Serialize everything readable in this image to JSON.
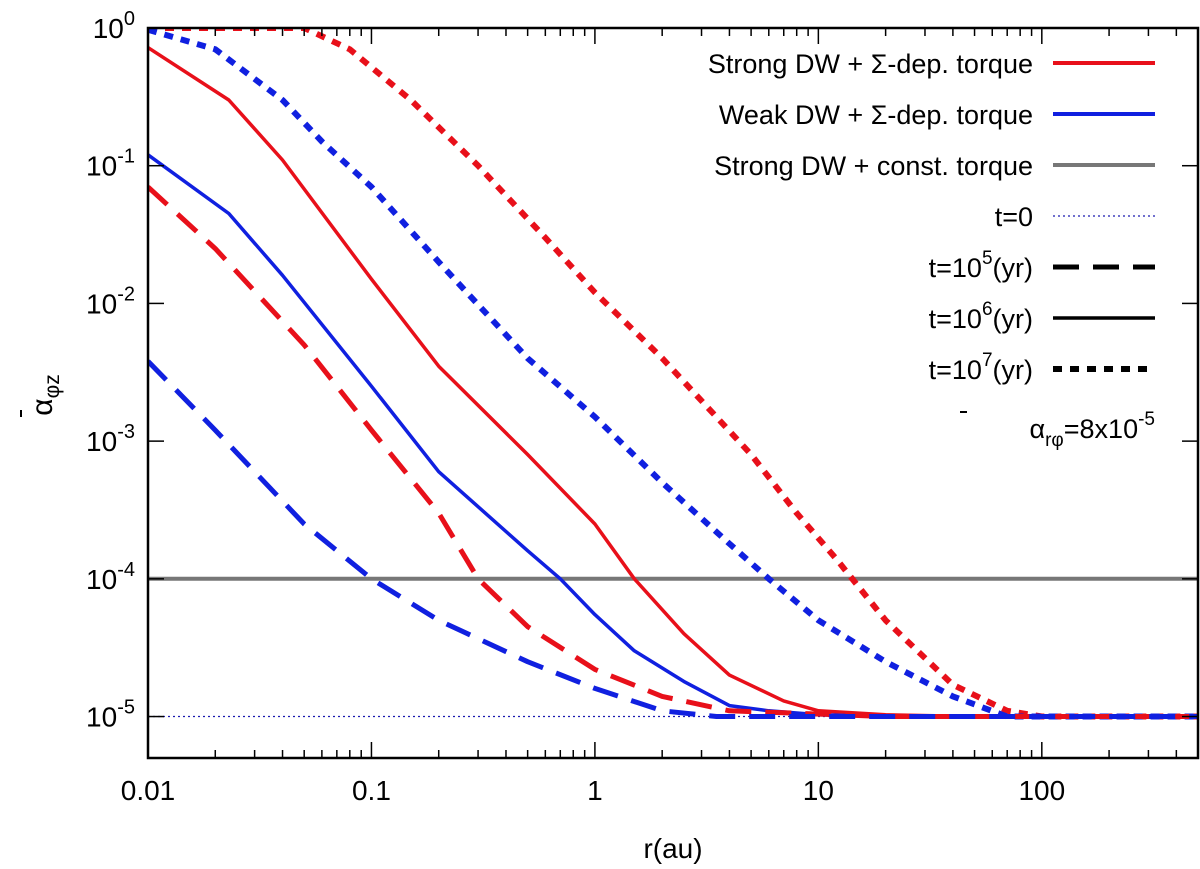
{
  "chart_data": {
    "type": "line",
    "xscale": "log",
    "yscale": "log",
    "xlim": [
      0.01,
      500
    ],
    "ylim": [
      5e-06,
      1
    ],
    "xlabel": "r(au)",
    "ylabel": "ᾱ_φz",
    "grid": false,
    "legend_position": "top-right",
    "x_ticks": [
      {
        "value": 0.01,
        "label": "0.01"
      },
      {
        "value": 0.1,
        "label": "0.1"
      },
      {
        "value": 1,
        "label": "1"
      },
      {
        "value": 10,
        "label": "10"
      },
      {
        "value": 100,
        "label": "100"
      }
    ],
    "y_ticks": [
      {
        "value": 1,
        "base": "10",
        "exp": "0"
      },
      {
        "value": 0.1,
        "base": "10",
        "exp": "-1"
      },
      {
        "value": 0.01,
        "base": "10",
        "exp": "-2"
      },
      {
        "value": 0.001,
        "base": "10",
        "exp": "-3"
      },
      {
        "value": 0.0001,
        "base": "10",
        "exp": "-4"
      },
      {
        "value": 1e-05,
        "base": "10",
        "exp": "-5"
      }
    ],
    "legend": {
      "models": [
        {
          "label": "Strong DW + Σ-dep. torque",
          "color": "#e8101a"
        },
        {
          "label": "Weak DW + Σ-dep. torque",
          "color": "#1020e0"
        },
        {
          "label": "Strong DW + const. torque",
          "color": "#777777"
        }
      ],
      "times": [
        {
          "prefix": "t=0",
          "exp": "",
          "suffix": "",
          "dash": "dotted"
        },
        {
          "prefix": "t=10",
          "exp": "5",
          "suffix": "(yr)",
          "dash": "long"
        },
        {
          "prefix": "t=10",
          "exp": "6",
          "suffix": "(yr)",
          "dash": "solid"
        },
        {
          "prefix": "t=10",
          "exp": "7",
          "suffix": "(yr)",
          "dash": "short"
        }
      ],
      "note": {
        "main": "α",
        "sub": "rφ",
        "eq": "=8x10",
        "exp": "-5"
      }
    },
    "series": [
      {
        "model": "const",
        "time": "all",
        "color": "#777777",
        "dash": "solid",
        "x": [
          0.01,
          500
        ],
        "y": [
          0.0001,
          0.0001
        ]
      },
      {
        "model": "strong",
        "time": "t0",
        "color": "#1a1ab0",
        "dash": "dotted",
        "x": [
          0.01,
          500
        ],
        "y": [
          1e-05,
          1e-05
        ]
      },
      {
        "model": "strong",
        "time": "1e7",
        "color": "#e8101a",
        "dash": "short",
        "x": [
          0.01,
          0.05,
          0.08,
          0.15,
          0.3,
          0.6,
          1,
          2,
          5,
          8,
          12,
          20,
          40,
          70,
          100,
          500
        ],
        "y": [
          1,
          1,
          0.7,
          0.3,
          0.1,
          0.03,
          0.012,
          0.004,
          0.0008,
          0.0003,
          0.00014,
          5e-05,
          1.7e-05,
          1.1e-05,
          1e-05,
          1e-05
        ]
      },
      {
        "model": "weak",
        "time": "1e7",
        "color": "#1020e0",
        "dash": "short",
        "x": [
          0.01,
          0.02,
          0.04,
          0.06,
          0.1,
          0.2,
          0.5,
          1,
          2,
          4,
          6,
          10,
          20,
          40,
          70,
          500
        ],
        "y": [
          0.97,
          0.7,
          0.3,
          0.15,
          0.07,
          0.02,
          0.004,
          0.0015,
          0.0005,
          0.00018,
          0.0001,
          5e-05,
          2.5e-05,
          1.4e-05,
          1e-05,
          1e-05
        ]
      },
      {
        "model": "strong",
        "time": "1e6",
        "color": "#e8101a",
        "dash": "solid",
        "x": [
          0.01,
          0.023,
          0.04,
          0.1,
          0.2,
          0.5,
          1,
          1.5,
          2.5,
          4,
          7,
          10,
          20,
          50,
          500
        ],
        "y": [
          0.72,
          0.3,
          0.11,
          0.015,
          0.0035,
          0.0008,
          0.00025,
          0.0001,
          4e-05,
          2e-05,
          1.3e-05,
          1.1e-05,
          1.03e-05,
          1e-05,
          1e-05
        ]
      },
      {
        "model": "weak",
        "time": "1e6",
        "color": "#1020e0",
        "dash": "solid",
        "x": [
          0.01,
          0.023,
          0.04,
          0.1,
          0.2,
          0.5,
          0.7,
          1,
          1.5,
          2.5,
          4,
          6,
          10,
          20,
          500
        ],
        "y": [
          0.12,
          0.045,
          0.016,
          0.0025,
          0.0006,
          0.00016,
          0.0001,
          5.5e-05,
          3e-05,
          1.8e-05,
          1.2e-05,
          1.1e-05,
          1.03e-05,
          1e-05,
          1e-05
        ]
      },
      {
        "model": "strong",
        "time": "1e5",
        "color": "#e8101a",
        "dash": "long",
        "x": [
          0.01,
          0.02,
          0.05,
          0.1,
          0.2,
          0.3,
          0.5,
          1,
          2,
          4,
          20,
          500
        ],
        "y": [
          0.07,
          0.025,
          0.005,
          0.0012,
          0.0003,
          0.0001,
          4.5e-05,
          2.2e-05,
          1.4e-05,
          1.1e-05,
          1e-05,
          1e-05
        ]
      },
      {
        "model": "weak",
        "time": "1e5",
        "color": "#1020e0",
        "dash": "long",
        "x": [
          0.01,
          0.02,
          0.05,
          0.1,
          0.2,
          0.5,
          1,
          2,
          3.5,
          500
        ],
        "y": [
          0.0038,
          0.0012,
          0.00025,
          0.0001,
          5e-05,
          2.5e-05,
          1.6e-05,
          1.1e-05,
          1e-05,
          1e-05
        ]
      }
    ]
  }
}
